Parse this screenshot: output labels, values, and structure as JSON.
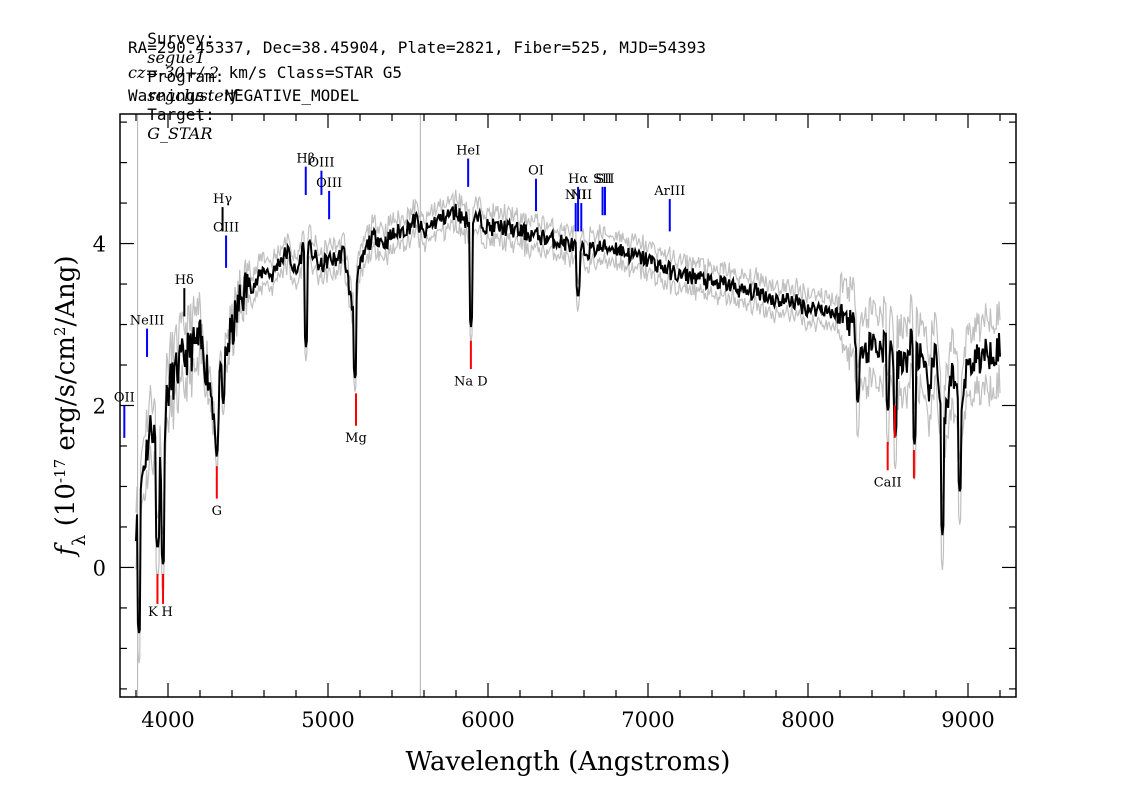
{
  "header": {
    "survey_label": "Survey:",
    "survey": "segue1",
    "program_label": "Program:",
    "program": "segclusterf",
    "target_label": "Target:",
    "target": "G_STAR",
    "line2": "RA=290.45337, Dec=38.45904, Plate=2821, Fiber=525, MJD=54393",
    "cz": "cz=-30+/-2",
    "cz_unit": " km/s Class=STAR G5",
    "warnings": "Warnings: NEGATIVE_MODEL"
  },
  "chart_data": {
    "type": "line",
    "title": "",
    "xlabel": "Wavelength (Angstroms)",
    "ylabel": "f_λ (10^-17 erg/s/cm^2/Ang)",
    "xlim": [
      3700,
      9300
    ],
    "ylim": [
      -1.6,
      5.6
    ],
    "xticks": [
      4000,
      5000,
      6000,
      7000,
      8000,
      9000
    ],
    "yticks": [
      0,
      2,
      4
    ],
    "colors": {
      "flux": "#000000",
      "error_band": "#c0c0c0",
      "emission": "#0000ff",
      "absorption": "#ff0000",
      "sky": "#b0b0b0"
    },
    "series": [
      {
        "role": "flux",
        "x": [
          3800,
          3850,
          3900,
          3950,
          4000,
          4050,
          4100,
          4150,
          4200,
          4250,
          4300,
          4350,
          4400,
          4450,
          4500,
          4550,
          4600,
          4650,
          4700,
          4750,
          4800,
          4850,
          4900,
          4950,
          5000,
          5050,
          5100,
          5150,
          5200,
          5250,
          5300,
          5350,
          5400,
          5450,
          5500,
          5550,
          5600,
          5650,
          5700,
          5750,
          5800,
          5850,
          5900,
          5950,
          6000,
          6100,
          6200,
          6300,
          6400,
          6500,
          6600,
          6700,
          6800,
          6900,
          7000,
          7100,
          7200,
          7300,
          7400,
          7500,
          7600,
          7700,
          7800,
          7900,
          8000,
          8100,
          8200,
          8250,
          8300,
          8350,
          8400,
          8450,
          8500,
          8550,
          8600,
          8650,
          8700,
          8750,
          8800,
          8850,
          8900,
          8950,
          9000,
          9050,
          9100,
          9150,
          9200
        ],
        "y": [
          0.6,
          1.3,
          1.8,
          1.2,
          2.2,
          2.4,
          2.6,
          2.7,
          2.8,
          2.4,
          1.8,
          2.6,
          2.9,
          3.3,
          3.5,
          3.5,
          3.7,
          3.6,
          3.8,
          3.9,
          3.6,
          4.0,
          3.9,
          3.7,
          3.8,
          3.8,
          3.9,
          3.2,
          3.7,
          4.0,
          4.1,
          4.0,
          4.1,
          4.15,
          4.2,
          4.3,
          4.1,
          4.25,
          4.3,
          4.35,
          4.4,
          4.3,
          4.3,
          4.3,
          4.2,
          4.2,
          4.15,
          4.1,
          4.05,
          4.0,
          3.9,
          3.95,
          3.95,
          3.85,
          3.8,
          3.7,
          3.6,
          3.6,
          3.5,
          3.5,
          3.4,
          3.4,
          3.3,
          3.3,
          3.2,
          3.2,
          3.1,
          3.1,
          2.9,
          2.6,
          2.8,
          2.7,
          2.8,
          2.5,
          2.5,
          2.8,
          2.6,
          2.2,
          2.6,
          1.8,
          2.3,
          2.0,
          2.5,
          2.6,
          2.6,
          2.7,
          2.7
        ]
      }
    ],
    "absorption_dips": [
      {
        "x": 3820,
        "y": -0.85
      },
      {
        "x": 3935,
        "y": 0.2
      },
      {
        "x": 3970,
        "y": 0.0
      },
      {
        "x": 4305,
        "y": 1.35
      },
      {
        "x": 4345,
        "y": 2.0
      },
      {
        "x": 4863,
        "y": 2.7
      },
      {
        "x": 5170,
        "y": 2.3
      },
      {
        "x": 5893,
        "y": 2.95
      },
      {
        "x": 6563,
        "y": 3.3
      },
      {
        "x": 8310,
        "y": 2.0
      },
      {
        "x": 8500,
        "y": 1.9
      },
      {
        "x": 8545,
        "y": 1.6
      },
      {
        "x": 8665,
        "y": 1.5
      },
      {
        "x": 8840,
        "y": 0.4
      },
      {
        "x": 8950,
        "y": 0.9
      }
    ],
    "sky_lines": [
      3810,
      5577
    ],
    "emission_lines": [
      {
        "label": "OII",
        "x": 3727,
        "y1": 1.6,
        "y2": 2.0,
        "ly": 2.05,
        "color": "#0000ff"
      },
      {
        "label": "NeIII",
        "x": 3869,
        "y1": 2.6,
        "y2": 2.95,
        "ly": 3.0,
        "color": "#0000ff"
      },
      {
        "label": "Hδ",
        "x": 4102,
        "y1": 3.1,
        "y2": 3.45,
        "ly": 3.5,
        "color": "#000000"
      },
      {
        "label": "Hγ",
        "x": 4341,
        "y1": 4.15,
        "y2": 4.45,
        "ly": 4.5,
        "color": "#000000"
      },
      {
        "label": "OIII",
        "x": 4363,
        "y1": 3.7,
        "y2": 4.1,
        "ly": 4.15,
        "color": "#0000ff"
      },
      {
        "label": "Hβ",
        "x": 4861,
        "y1": 4.6,
        "y2": 4.95,
        "ly": 5.0,
        "color": "#0000ff"
      },
      {
        "label": "OIII",
        "x": 4959,
        "y1": 4.6,
        "y2": 4.9,
        "ly": 4.95,
        "color": "#0000ff"
      },
      {
        "label": "OIII",
        "x": 5007,
        "y1": 4.3,
        "y2": 4.65,
        "ly": 4.7,
        "color": "#0000ff"
      },
      {
        "label": "HeI",
        "x": 5876,
        "y1": 4.7,
        "y2": 5.05,
        "ly": 5.1,
        "color": "#0000ff"
      },
      {
        "label": "OI",
        "x": 6300,
        "y1": 4.4,
        "y2": 4.8,
        "ly": 4.85,
        "color": "#0000ff"
      },
      {
        "label": "NII",
        "x": 6548,
        "y1": 4.15,
        "y2": 4.5,
        "ly": 4.55,
        "color": "#0000ff"
      },
      {
        "label": "Hα",
        "x": 6563,
        "y1": 4.15,
        "y2": 4.7,
        "ly": 4.75,
        "color": "#0000ff"
      },
      {
        "label": "NII",
        "x": 6583,
        "y1": 4.15,
        "y2": 4.5,
        "ly": 4.55,
        "color": "#0000ff"
      },
      {
        "label": "SII",
        "x": 6716,
        "y1": 4.35,
        "y2": 4.7,
        "ly": 4.75,
        "color": "#0000ff"
      },
      {
        "label": "SII",
        "x": 6731,
        "y1": 4.35,
        "y2": 4.7,
        "ly": 4.75,
        "color": "#0000ff"
      },
      {
        "label": "ArIII",
        "x": 7136,
        "y1": 4.15,
        "y2": 4.55,
        "ly": 4.6,
        "color": "#0000ff"
      }
    ],
    "absorption_lines": [
      {
        "label": "K",
        "x": 3934,
        "y1": -0.45,
        "y2": -0.08,
        "ly": -0.6,
        "lx": 3905,
        "color": "#ff0000"
      },
      {
        "label": "H",
        "x": 3969,
        "y1": -0.45,
        "y2": -0.08,
        "ly": -0.6,
        "lx": 3995,
        "color": "#ff0000"
      },
      {
        "label": "G",
        "x": 4305,
        "y1": 0.85,
        "y2": 1.25,
        "ly": 0.65,
        "lx": 4305,
        "color": "#ff0000"
      },
      {
        "label": "Mg",
        "x": 5175,
        "y1": 1.75,
        "y2": 2.15,
        "ly": 1.55,
        "lx": 5175,
        "color": "#ff0000"
      },
      {
        "label": "Na D",
        "x": 5893,
        "y1": 2.45,
        "y2": 2.8,
        "ly": 2.25,
        "lx": 5893,
        "color": "#ff0000"
      },
      {
        "label": "CaII",
        "x": 8498,
        "y1": 1.2,
        "y2": 1.55,
        "ly": 1.0,
        "lx": 8498,
        "color": "#ff0000"
      },
      {
        "label": "CaII",
        "x": 8542,
        "y1": 1.6,
        "y2": 2.0,
        "ly": null,
        "lx": 8542,
        "color": "#ff0000"
      },
      {
        "label": "CaII",
        "x": 8662,
        "y1": 1.1,
        "y2": 1.45,
        "ly": null,
        "lx": 8662,
        "color": "#ff0000"
      }
    ]
  }
}
